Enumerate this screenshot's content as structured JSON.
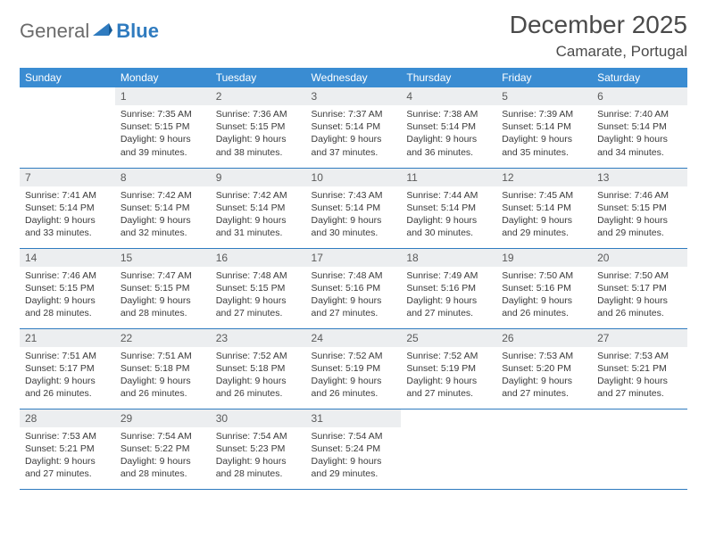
{
  "logo": {
    "part1": "General",
    "part2": "Blue"
  },
  "title": "December 2025",
  "location": "Camarate, Portugal",
  "colors": {
    "header_bg": "#3a8cd2",
    "header_text": "#ffffff",
    "daynum_bg": "#eceef0",
    "border": "#2f7bbf",
    "text": "#3a3a3a",
    "logo_blue": "#2f7bbf",
    "logo_gray": "#6b6b6b"
  },
  "weekdays": [
    "Sunday",
    "Monday",
    "Tuesday",
    "Wednesday",
    "Thursday",
    "Friday",
    "Saturday"
  ],
  "weeks": [
    [
      {
        "day": "",
        "sunrise": "",
        "sunset": "",
        "daylight": ""
      },
      {
        "day": "1",
        "sunrise": "7:35 AM",
        "sunset": "5:15 PM",
        "daylight": "9 hours and 39 minutes."
      },
      {
        "day": "2",
        "sunrise": "7:36 AM",
        "sunset": "5:15 PM",
        "daylight": "9 hours and 38 minutes."
      },
      {
        "day": "3",
        "sunrise": "7:37 AM",
        "sunset": "5:14 PM",
        "daylight": "9 hours and 37 minutes."
      },
      {
        "day": "4",
        "sunrise": "7:38 AM",
        "sunset": "5:14 PM",
        "daylight": "9 hours and 36 minutes."
      },
      {
        "day": "5",
        "sunrise": "7:39 AM",
        "sunset": "5:14 PM",
        "daylight": "9 hours and 35 minutes."
      },
      {
        "day": "6",
        "sunrise": "7:40 AM",
        "sunset": "5:14 PM",
        "daylight": "9 hours and 34 minutes."
      }
    ],
    [
      {
        "day": "7",
        "sunrise": "7:41 AM",
        "sunset": "5:14 PM",
        "daylight": "9 hours and 33 minutes."
      },
      {
        "day": "8",
        "sunrise": "7:42 AM",
        "sunset": "5:14 PM",
        "daylight": "9 hours and 32 minutes."
      },
      {
        "day": "9",
        "sunrise": "7:42 AM",
        "sunset": "5:14 PM",
        "daylight": "9 hours and 31 minutes."
      },
      {
        "day": "10",
        "sunrise": "7:43 AM",
        "sunset": "5:14 PM",
        "daylight": "9 hours and 30 minutes."
      },
      {
        "day": "11",
        "sunrise": "7:44 AM",
        "sunset": "5:14 PM",
        "daylight": "9 hours and 30 minutes."
      },
      {
        "day": "12",
        "sunrise": "7:45 AM",
        "sunset": "5:14 PM",
        "daylight": "9 hours and 29 minutes."
      },
      {
        "day": "13",
        "sunrise": "7:46 AM",
        "sunset": "5:15 PM",
        "daylight": "9 hours and 29 minutes."
      }
    ],
    [
      {
        "day": "14",
        "sunrise": "7:46 AM",
        "sunset": "5:15 PM",
        "daylight": "9 hours and 28 minutes."
      },
      {
        "day": "15",
        "sunrise": "7:47 AM",
        "sunset": "5:15 PM",
        "daylight": "9 hours and 28 minutes."
      },
      {
        "day": "16",
        "sunrise": "7:48 AM",
        "sunset": "5:15 PM",
        "daylight": "9 hours and 27 minutes."
      },
      {
        "day": "17",
        "sunrise": "7:48 AM",
        "sunset": "5:16 PM",
        "daylight": "9 hours and 27 minutes."
      },
      {
        "day": "18",
        "sunrise": "7:49 AM",
        "sunset": "5:16 PM",
        "daylight": "9 hours and 27 minutes."
      },
      {
        "day": "19",
        "sunrise": "7:50 AM",
        "sunset": "5:16 PM",
        "daylight": "9 hours and 26 minutes."
      },
      {
        "day": "20",
        "sunrise": "7:50 AM",
        "sunset": "5:17 PM",
        "daylight": "9 hours and 26 minutes."
      }
    ],
    [
      {
        "day": "21",
        "sunrise": "7:51 AM",
        "sunset": "5:17 PM",
        "daylight": "9 hours and 26 minutes."
      },
      {
        "day": "22",
        "sunrise": "7:51 AM",
        "sunset": "5:18 PM",
        "daylight": "9 hours and 26 minutes."
      },
      {
        "day": "23",
        "sunrise": "7:52 AM",
        "sunset": "5:18 PM",
        "daylight": "9 hours and 26 minutes."
      },
      {
        "day": "24",
        "sunrise": "7:52 AM",
        "sunset": "5:19 PM",
        "daylight": "9 hours and 26 minutes."
      },
      {
        "day": "25",
        "sunrise": "7:52 AM",
        "sunset": "5:19 PM",
        "daylight": "9 hours and 27 minutes."
      },
      {
        "day": "26",
        "sunrise": "7:53 AM",
        "sunset": "5:20 PM",
        "daylight": "9 hours and 27 minutes."
      },
      {
        "day": "27",
        "sunrise": "7:53 AM",
        "sunset": "5:21 PM",
        "daylight": "9 hours and 27 minutes."
      }
    ],
    [
      {
        "day": "28",
        "sunrise": "7:53 AM",
        "sunset": "5:21 PM",
        "daylight": "9 hours and 27 minutes."
      },
      {
        "day": "29",
        "sunrise": "7:54 AM",
        "sunset": "5:22 PM",
        "daylight": "9 hours and 28 minutes."
      },
      {
        "day": "30",
        "sunrise": "7:54 AM",
        "sunset": "5:23 PM",
        "daylight": "9 hours and 28 minutes."
      },
      {
        "day": "31",
        "sunrise": "7:54 AM",
        "sunset": "5:24 PM",
        "daylight": "9 hours and 29 minutes."
      },
      {
        "day": "",
        "sunrise": "",
        "sunset": "",
        "daylight": ""
      },
      {
        "day": "",
        "sunrise": "",
        "sunset": "",
        "daylight": ""
      },
      {
        "day": "",
        "sunrise": "",
        "sunset": "",
        "daylight": ""
      }
    ]
  ]
}
